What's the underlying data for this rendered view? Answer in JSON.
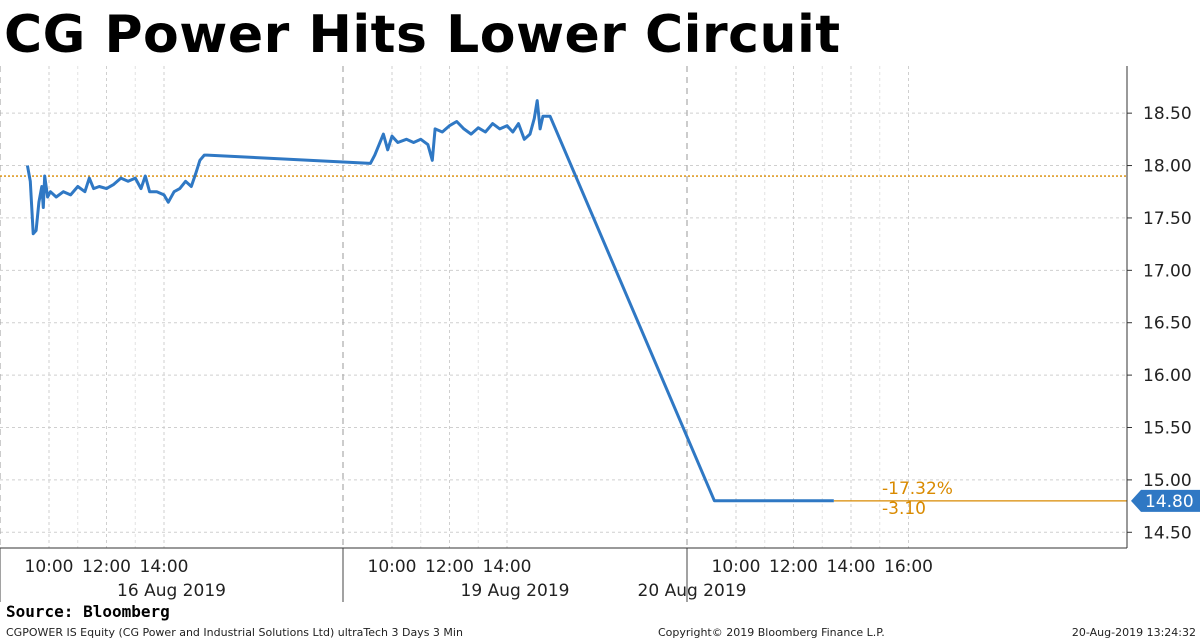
{
  "title": "CG Power Hits Lower Circuit",
  "source": "Source: Bloomberg",
  "footer": {
    "left": "CGPOWER IS Equity (CG Power and Industrial Solutions Ltd) ultraTech 3 Days 3 Min",
    "center": "Copyright© 2019 Bloomberg Finance L.P.",
    "right": "20-Aug-2019 13:24:32"
  },
  "colors": {
    "line": "#2f78c4",
    "reference": "#d98a00",
    "annotation": "#d98a00",
    "last_price_bg": "#2f78c4"
  },
  "chart_data": {
    "type": "line",
    "title": "CG Power Hits Lower Circuit",
    "ylim": [
      14.35,
      18.95
    ],
    "y_ticks": [
      "14.50",
      "15.00",
      "15.50",
      "16.00",
      "16.50",
      "17.00",
      "17.50",
      "18.00",
      "18.50"
    ],
    "grid": true,
    "days": [
      {
        "label": "16 Aug 2019",
        "time_ticks": [
          "10:00",
          "12:00",
          "14:00"
        ]
      },
      {
        "label": "19 Aug 2019",
        "time_ticks": [
          "10:00",
          "12:00",
          "14:00"
        ]
      },
      {
        "label": "20 Aug 2019",
        "time_ticks": [
          "10:00",
          "12:00",
          "14:00",
          "16:00"
        ]
      }
    ],
    "reference_level": 17.9,
    "series": [
      {
        "values": [
          [
            "16 Aug 2019 09:15",
            18.0
          ],
          [
            "16 Aug 2019 09:21",
            17.85
          ],
          [
            "16 Aug 2019 09:27",
            17.35
          ],
          [
            "16 Aug 2019 09:33",
            17.38
          ],
          [
            "16 Aug 2019 09:39",
            17.65
          ],
          [
            "16 Aug 2019 09:45",
            17.8
          ],
          [
            "16 Aug 2019 09:48",
            17.6
          ],
          [
            "16 Aug 2019 09:51",
            17.9
          ],
          [
            "16 Aug 2019 09:57",
            17.7
          ],
          [
            "16 Aug 2019 10:03",
            17.75
          ],
          [
            "16 Aug 2019 10:15",
            17.7
          ],
          [
            "16 Aug 2019 10:30",
            17.75
          ],
          [
            "16 Aug 2019 10:45",
            17.72
          ],
          [
            "16 Aug 2019 11:00",
            17.8
          ],
          [
            "16 Aug 2019 11:15",
            17.75
          ],
          [
            "16 Aug 2019 11:24",
            17.88
          ],
          [
            "16 Aug 2019 11:33",
            17.78
          ],
          [
            "16 Aug 2019 11:45",
            17.8
          ],
          [
            "16 Aug 2019 12:00",
            17.78
          ],
          [
            "16 Aug 2019 12:15",
            17.82
          ],
          [
            "16 Aug 2019 12:30",
            17.88
          ],
          [
            "16 Aug 2019 12:45",
            17.85
          ],
          [
            "16 Aug 2019 13:00",
            17.88
          ],
          [
            "16 Aug 2019 13:12",
            17.78
          ],
          [
            "16 Aug 2019 13:21",
            17.9
          ],
          [
            "16 Aug 2019 13:30",
            17.75
          ],
          [
            "16 Aug 2019 13:45",
            17.75
          ],
          [
            "16 Aug 2019 14:00",
            17.72
          ],
          [
            "16 Aug 2019 14:09",
            17.65
          ],
          [
            "16 Aug 2019 14:21",
            17.75
          ],
          [
            "16 Aug 2019 14:33",
            17.78
          ],
          [
            "16 Aug 2019 14:45",
            17.85
          ],
          [
            "16 Aug 2019 14:57",
            17.8
          ],
          [
            "16 Aug 2019 15:06",
            17.92
          ],
          [
            "16 Aug 2019 15:15",
            18.05
          ],
          [
            "16 Aug 2019 15:24",
            18.1
          ],
          [
            "16 Aug 2019 15:30",
            18.1
          ],
          [
            "19 Aug 2019 09:15",
            18.02
          ],
          [
            "19 Aug 2019 09:24",
            18.1
          ],
          [
            "19 Aug 2019 09:33",
            18.2
          ],
          [
            "19 Aug 2019 09:42",
            18.3
          ],
          [
            "19 Aug 2019 09:51",
            18.15
          ],
          [
            "19 Aug 2019 10:00",
            18.28
          ],
          [
            "19 Aug 2019 10:12",
            18.22
          ],
          [
            "19 Aug 2019 10:30",
            18.25
          ],
          [
            "19 Aug 2019 10:45",
            18.22
          ],
          [
            "19 Aug 2019 11:00",
            18.25
          ],
          [
            "19 Aug 2019 11:15",
            18.2
          ],
          [
            "19 Aug 2019 11:24",
            18.05
          ],
          [
            "19 Aug 2019 11:30",
            18.35
          ],
          [
            "19 Aug 2019 11:45",
            18.32
          ],
          [
            "19 Aug 2019 12:00",
            18.38
          ],
          [
            "19 Aug 2019 12:15",
            18.42
          ],
          [
            "19 Aug 2019 12:30",
            18.35
          ],
          [
            "19 Aug 2019 12:45",
            18.3
          ],
          [
            "19 Aug 2019 13:00",
            18.36
          ],
          [
            "19 Aug 2019 13:15",
            18.32
          ],
          [
            "19 Aug 2019 13:30",
            18.4
          ],
          [
            "19 Aug 2019 13:45",
            18.35
          ],
          [
            "19 Aug 2019 14:00",
            18.38
          ],
          [
            "19 Aug 2019 14:12",
            18.32
          ],
          [
            "19 Aug 2019 14:24",
            18.4
          ],
          [
            "19 Aug 2019 14:36",
            18.25
          ],
          [
            "19 Aug 2019 14:48",
            18.3
          ],
          [
            "19 Aug 2019 14:57",
            18.45
          ],
          [
            "19 Aug 2019 15:03",
            18.62
          ],
          [
            "19 Aug 2019 15:09",
            18.35
          ],
          [
            "19 Aug 2019 15:15",
            18.47
          ],
          [
            "19 Aug 2019 15:30",
            18.47
          ],
          [
            "20 Aug 2019 09:15",
            14.8
          ],
          [
            "20 Aug 2019 13:24",
            14.8
          ]
        ]
      }
    ],
    "last_price": "14.80",
    "annotations": [
      "-17.32%",
      "-3.10"
    ]
  }
}
